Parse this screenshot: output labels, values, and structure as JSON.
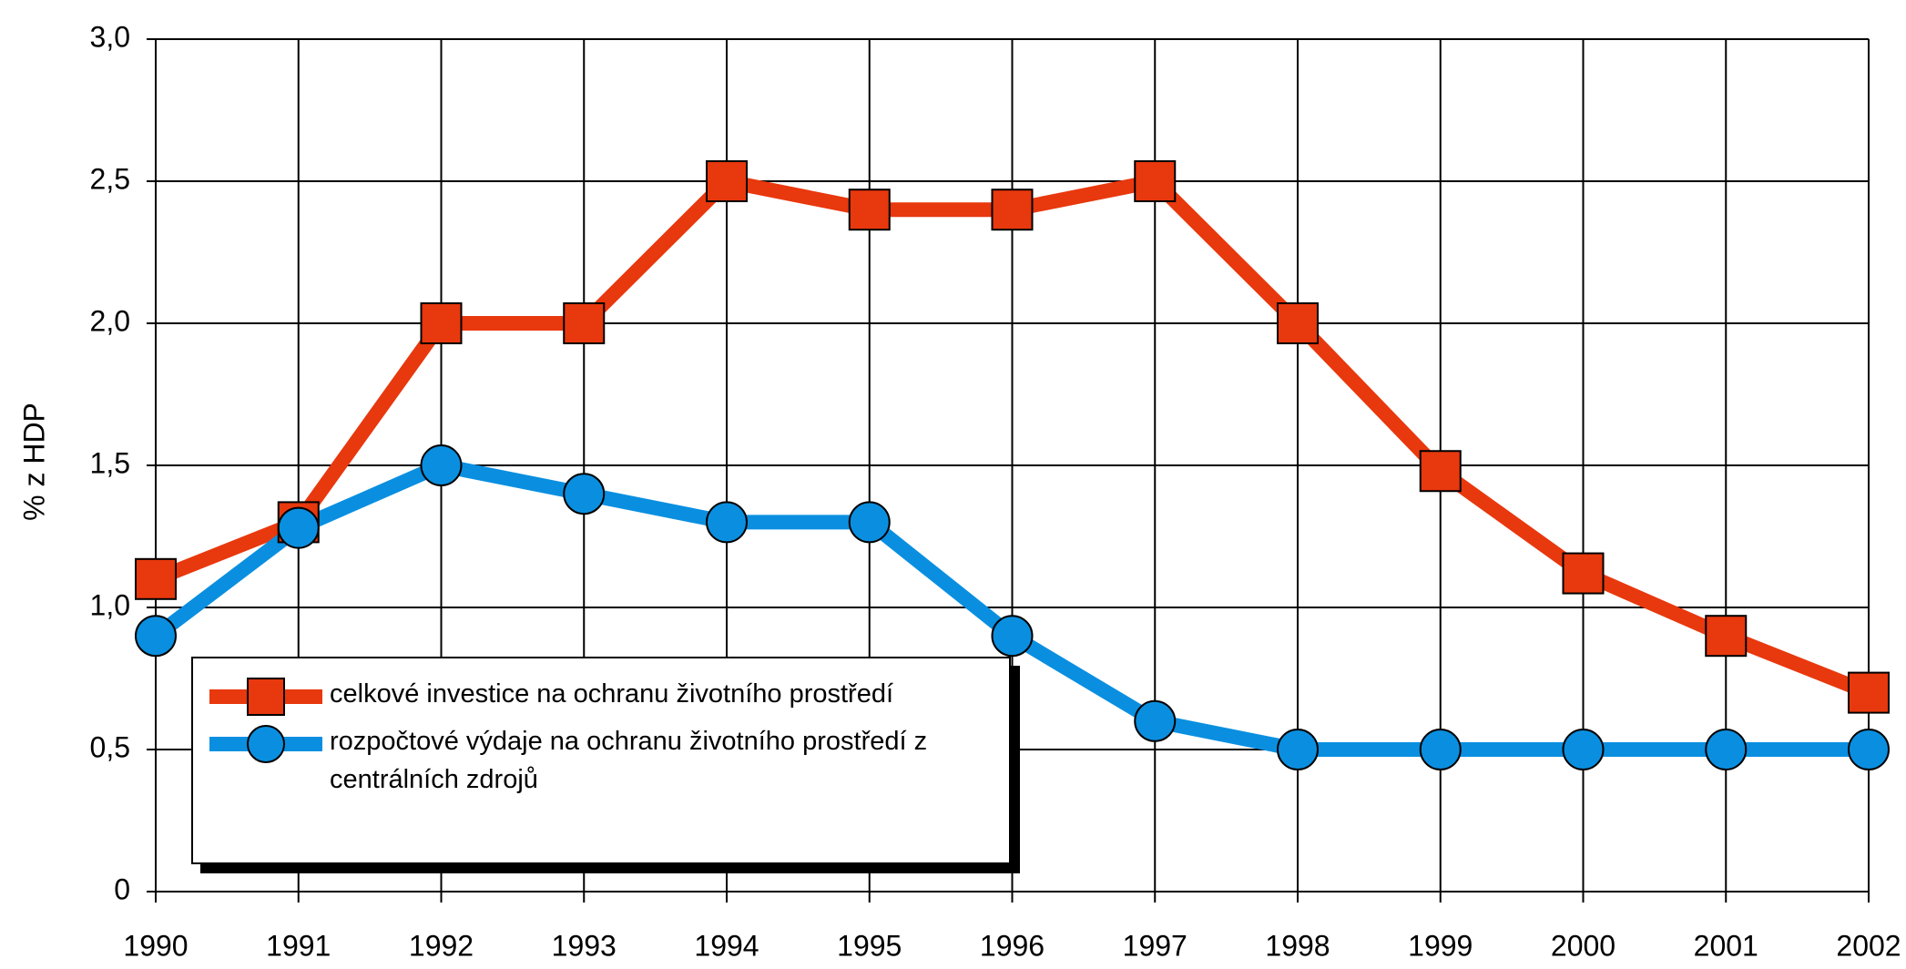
{
  "chart_data": {
    "type": "line",
    "y_label": "% z HDP",
    "categories": [
      "1990",
      "1991",
      "1992",
      "1993",
      "1994",
      "1995",
      "1996",
      "1997",
      "1998",
      "1999",
      "2000",
      "2001",
      "2002"
    ],
    "series": [
      {
        "name": "celkové investice na ochranu životního prostředí",
        "color": "#e8380d",
        "marker": "square",
        "values": [
          1.1,
          1.3,
          2.0,
          2.0,
          2.5,
          2.4,
          2.4,
          2.5,
          2.0,
          1.48,
          1.12,
          0.9,
          0.7
        ]
      },
      {
        "name": "rozpočtové výdaje na ochranu životního prostředí z centrálních zdrojů",
        "color": "#0a8fe0",
        "marker": "circle",
        "values": [
          0.9,
          1.28,
          1.5,
          1.4,
          1.3,
          1.3,
          0.9,
          0.6,
          0.5,
          0.5,
          0.5,
          0.5,
          0.5
        ]
      }
    ],
    "ylim": [
      0,
      3
    ],
    "yticks": [
      0,
      {
        "value": 0.5,
        "label": "0,5"
      },
      {
        "value": 1,
        "label": "1,0"
      },
      {
        "value": 1.5,
        "label": "1,5"
      },
      {
        "value": 2,
        "label": "2,0"
      },
      {
        "value": 2.5,
        "label": "2,5"
      },
      {
        "value": 3,
        "label": "3,0"
      }
    ],
    "grid": true
  }
}
